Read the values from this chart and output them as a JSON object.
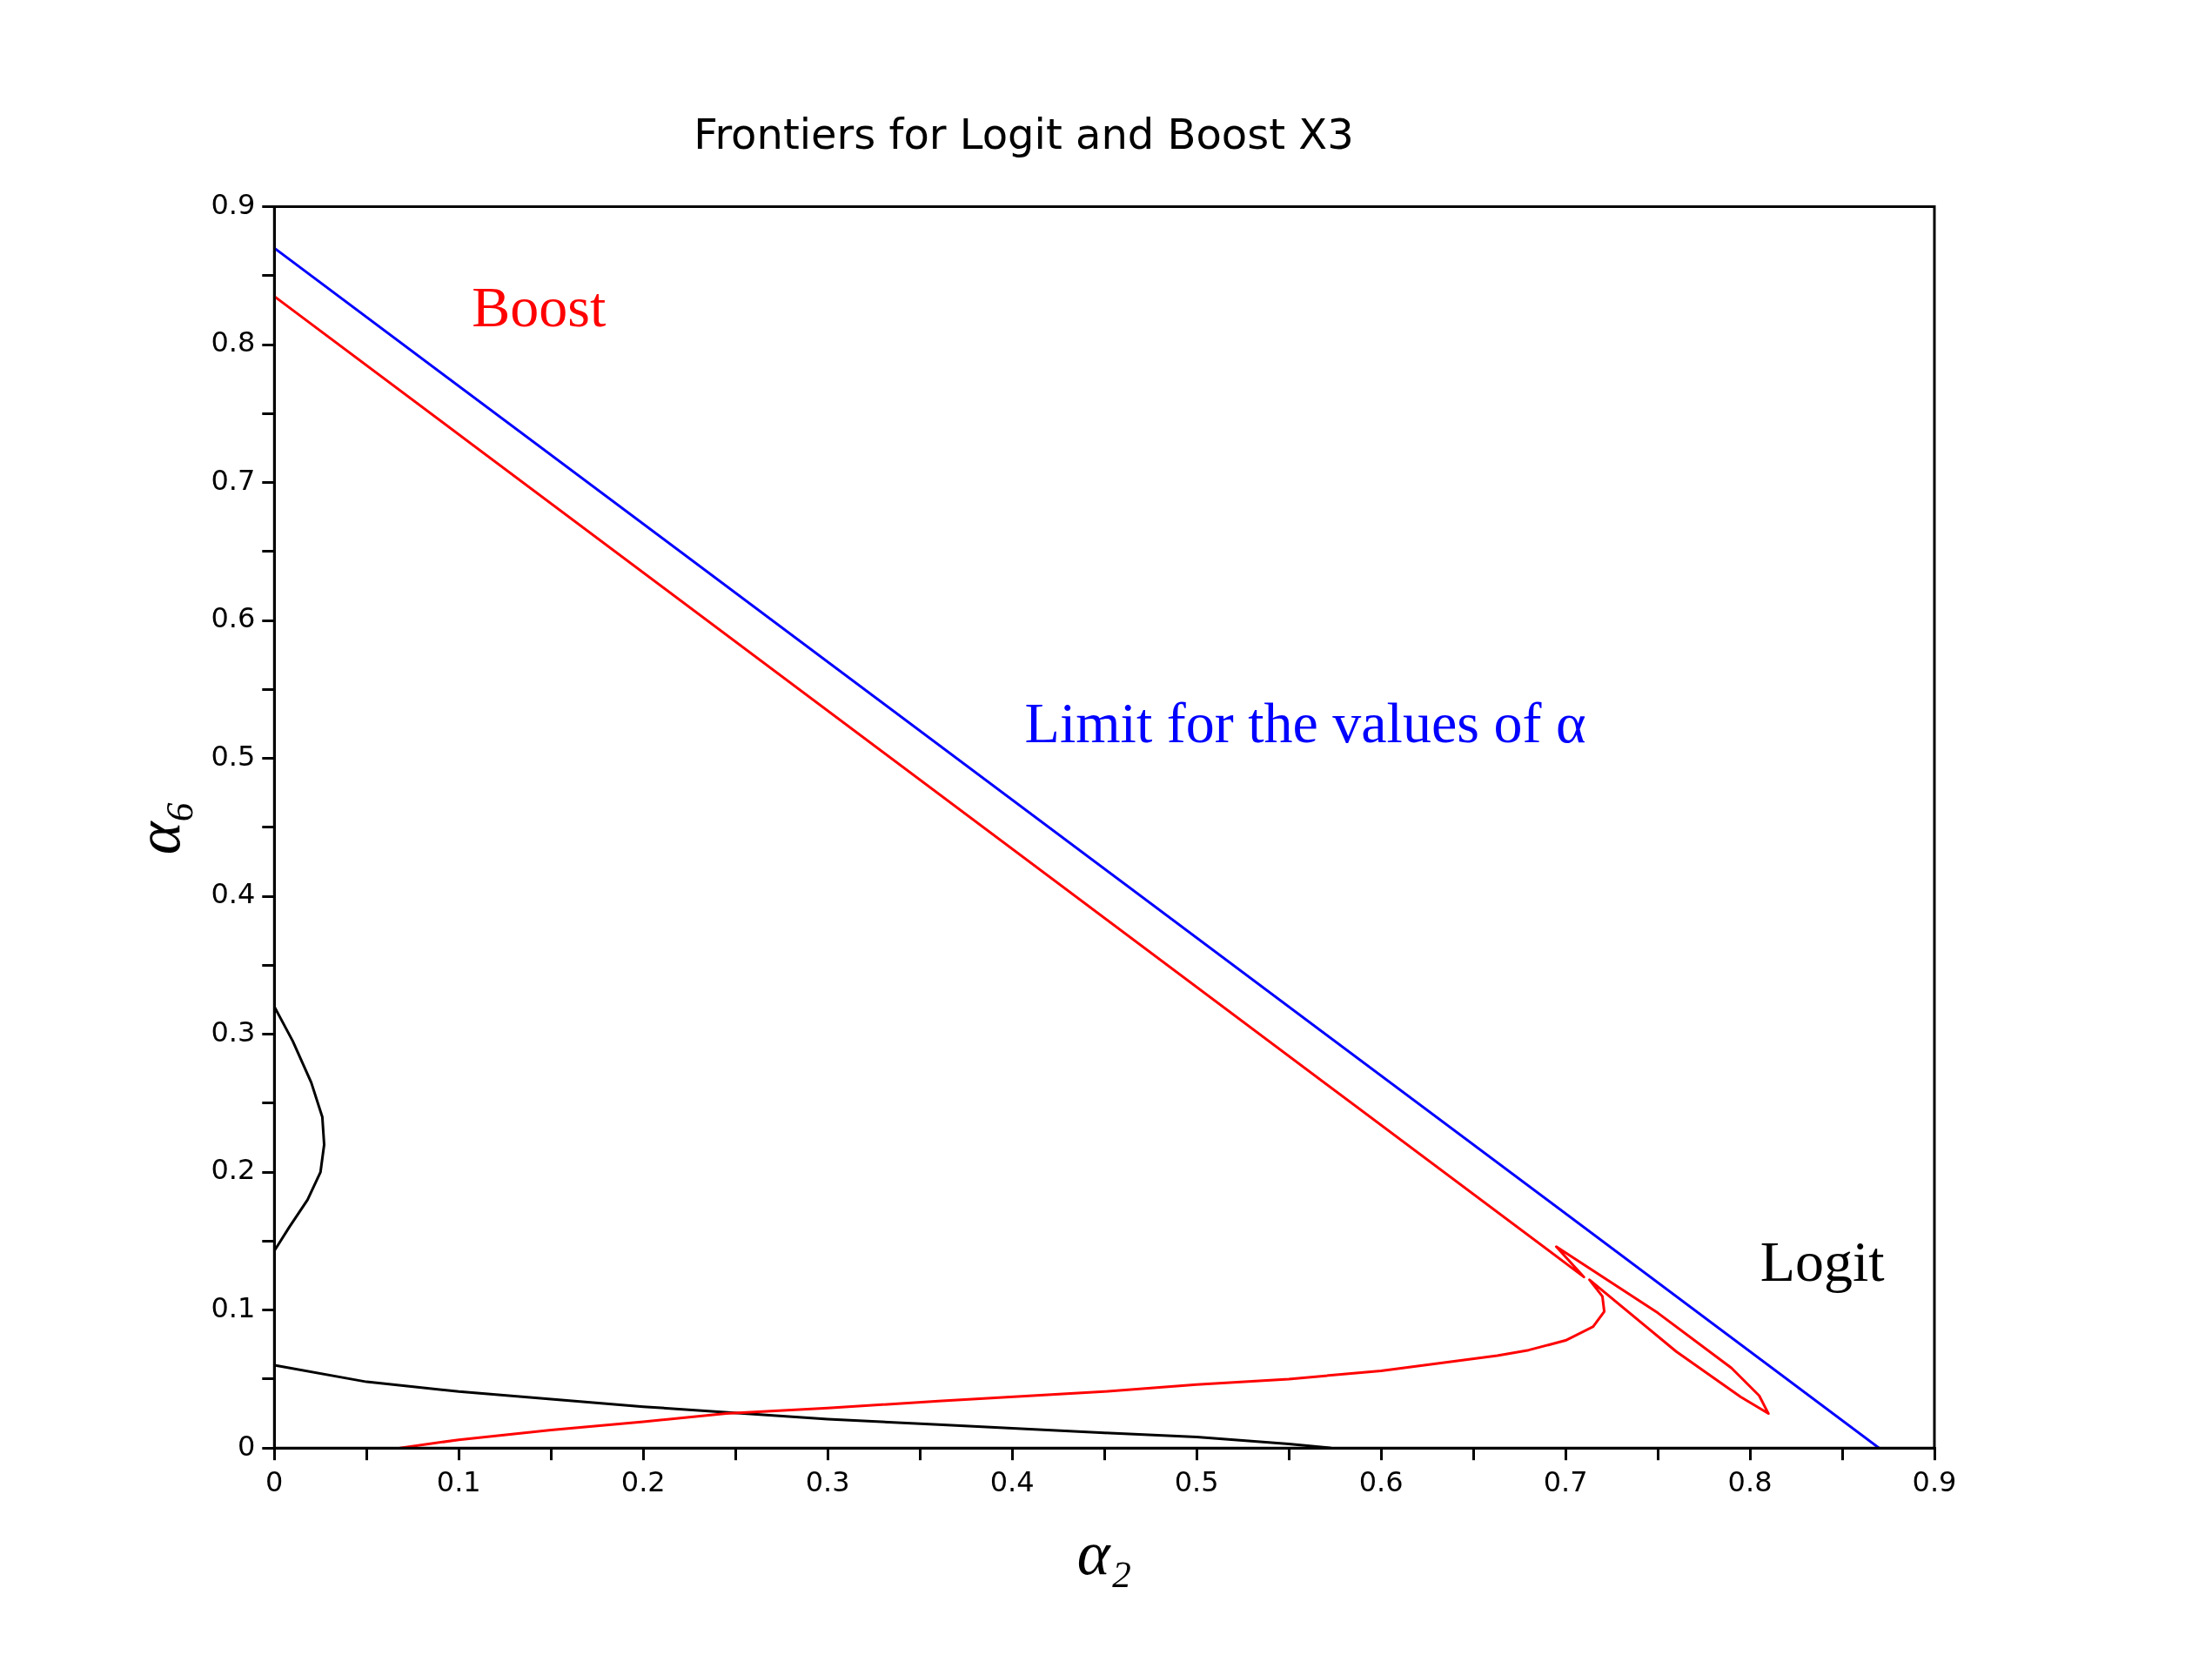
{
  "chart_data": {
    "type": "line",
    "title": "Frontiers for Logit and Boost X3",
    "xlabel": "α₂",
    "ylabel": "α₆",
    "series": [
      {
        "name": "Boost",
        "color": "#ff0000",
        "x": [
          0,
          0.71,
          0.695,
          0.75,
          0.79,
          0.805,
          0.81,
          0.795,
          0.76,
          0.713,
          0.72,
          0.721,
          0.715,
          0.7,
          0.68,
          0.663,
          0.6,
          0.55,
          0.5,
          0.45,
          0.36,
          0.3,
          0.245,
          0.2,
          0.15,
          0.1,
          0.068
        ],
        "values": [
          0.835,
          0.124,
          0.146,
          0.098,
          0.058,
          0.038,
          0.025,
          0.037,
          0.07,
          0.122,
          0.11,
          0.099,
          0.088,
          0.078,
          0.071,
          0.067,
          0.056,
          0.05,
          0.046,
          0.041,
          0.034,
          0.029,
          0.025,
          0.019,
          0.013,
          0.006,
          0
        ]
      },
      {
        "name": "Limit for the values of α",
        "color": "#0000ff",
        "x": [
          0,
          0.87
        ],
        "values": [
          0.87,
          0
        ]
      },
      {
        "name": "Logit",
        "color": "#000000",
        "x": [
          0,
          0.01,
          0.02,
          0.026,
          0.027,
          0.025,
          0.018,
          0.008,
          0,
          null,
          0,
          0.05,
          0.1,
          0.2,
          0.3,
          0.36,
          0.45,
          0.5,
          0.55,
          0.573
        ],
        "values": [
          0.32,
          0.295,
          0.265,
          0.24,
          0.22,
          0.2,
          0.18,
          0.16,
          0.143,
          null,
          0.06,
          0.048,
          0.041,
          0.03,
          0.021,
          0.017,
          0.011,
          0.008,
          0.003,
          0
        ]
      }
    ],
    "xlim": [
      0,
      0.9
    ],
    "ylim": [
      0,
      0.9
    ],
    "xticks": [
      0,
      {
        "value": 0.05,
        "label": null
      },
      0.1,
      {
        "value": 0.15,
        "label": null
      },
      0.2,
      {
        "value": 0.25,
        "label": null
      },
      0.3,
      {
        "value": 0.35,
        "label": null
      },
      0.4,
      {
        "value": 0.45,
        "label": null
      },
      0.5,
      {
        "value": 0.55,
        "label": null
      },
      0.6,
      {
        "value": 0.65,
        "label": null
      },
      0.7,
      {
        "value": 0.75,
        "label": null
      },
      0.8,
      {
        "value": 0.85,
        "label": null
      },
      0.9
    ],
    "yticks": [
      0,
      {
        "value": 0.05,
        "label": null
      },
      0.1,
      {
        "value": 0.15,
        "label": null
      },
      0.2,
      {
        "value": 0.25,
        "label": null
      },
      0.3,
      {
        "value": 0.35,
        "label": null
      },
      0.4,
      {
        "value": 0.45,
        "label": null
      },
      0.5,
      {
        "value": 0.55,
        "label": null
      },
      0.6,
      {
        "value": 0.65,
        "label": null
      },
      0.7,
      {
        "value": 0.75,
        "label": null
      },
      0.8,
      {
        "value": 0.85,
        "label": null
      },
      0.9
    ],
    "grid": false,
    "legend": false
  }
}
